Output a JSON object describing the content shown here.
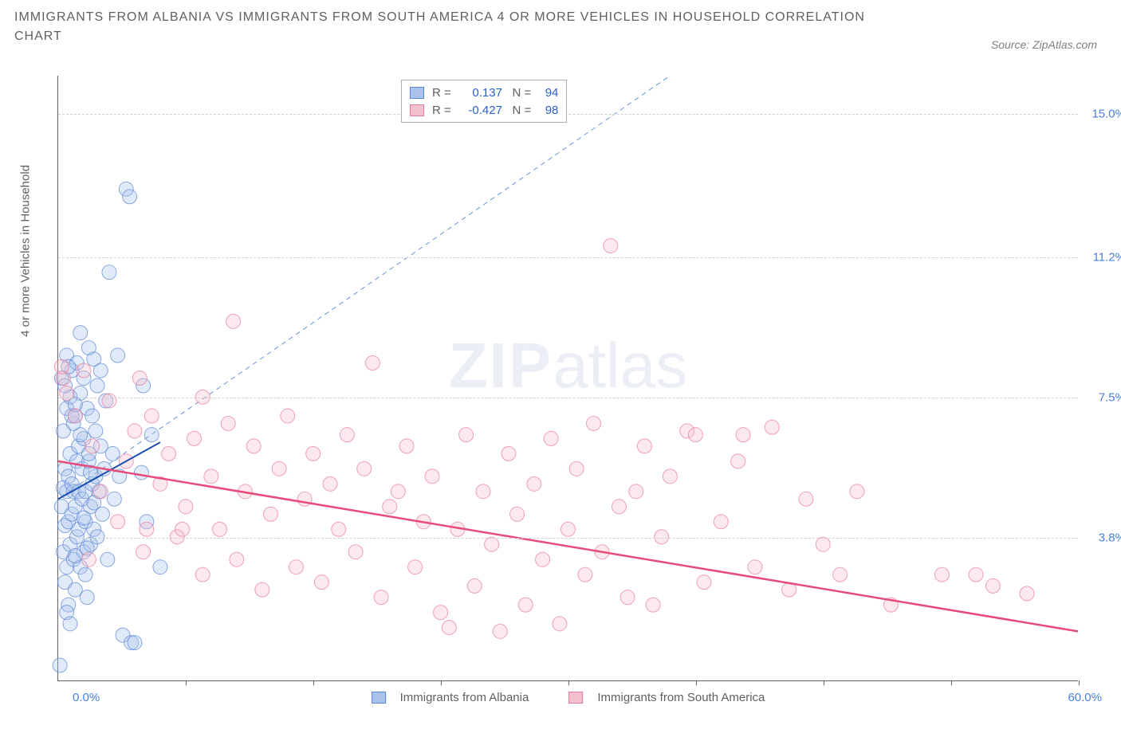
{
  "title": "IMMIGRANTS FROM ALBANIA VS IMMIGRANTS FROM SOUTH AMERICA 4 OR MORE VEHICLES IN HOUSEHOLD CORRELATION CHART",
  "source": "Source: ZipAtlas.com",
  "watermark": {
    "bold": "ZIP",
    "light": "atlas"
  },
  "chart": {
    "type": "scatter",
    "y_axis_title": "4 or more Vehicles in Household",
    "xlim": [
      0,
      60
    ],
    "ylim": [
      0,
      16
    ],
    "x_min_label": "0.0%",
    "x_max_label": "60.0%",
    "y_ticks": [
      3.8,
      7.5,
      11.2,
      15.0
    ],
    "y_tick_labels": [
      "3.8%",
      "7.5%",
      "11.2%",
      "15.0%"
    ],
    "x_tick_positions": [
      7.5,
      15,
      22.5,
      30,
      37.5,
      45,
      52.5,
      60
    ],
    "background_color": "#ffffff",
    "grid_color": "#d0d0d0",
    "axis_color": "#606060",
    "marker_radius": 9,
    "marker_opacity": 0.35,
    "diagonal_line": {
      "color": "#6a93d8",
      "dash": "6,5",
      "width": 1
    },
    "series": [
      {
        "name": "Immigrants from Albania",
        "color_fill": "#a9c3ec",
        "color_stroke": "#5b86d4",
        "R": "0.137",
        "N": "94",
        "trend": {
          "x1": 0,
          "y1": 4.8,
          "x2": 6,
          "y2": 6.3,
          "color": "#1a4fb0",
          "width": 2
        },
        "points": [
          [
            0.1,
            0.4
          ],
          [
            0.2,
            4.6
          ],
          [
            0.3,
            5.1
          ],
          [
            0.3,
            3.4
          ],
          [
            0.3,
            6.6
          ],
          [
            0.4,
            2.6
          ],
          [
            0.4,
            4.1
          ],
          [
            0.4,
            5.6
          ],
          [
            0.5,
            7.2
          ],
          [
            0.5,
            3.0
          ],
          [
            0.5,
            5.0
          ],
          [
            0.5,
            8.6
          ],
          [
            0.6,
            4.2
          ],
          [
            0.6,
            5.4
          ],
          [
            0.6,
            2.0
          ],
          [
            0.7,
            6.0
          ],
          [
            0.7,
            3.6
          ],
          [
            0.7,
            7.5
          ],
          [
            0.8,
            5.2
          ],
          [
            0.8,
            4.4
          ],
          [
            0.8,
            8.2
          ],
          [
            0.9,
            3.2
          ],
          [
            0.9,
            6.8
          ],
          [
            0.9,
            5.0
          ],
          [
            1.0,
            4.6
          ],
          [
            1.0,
            7.0
          ],
          [
            1.0,
            2.4
          ],
          [
            1.1,
            5.8
          ],
          [
            1.1,
            8.4
          ],
          [
            1.1,
            3.8
          ],
          [
            1.2,
            4.0
          ],
          [
            1.2,
            6.2
          ],
          [
            1.2,
            5.0
          ],
          [
            1.3,
            9.2
          ],
          [
            1.3,
            3.0
          ],
          [
            1.3,
            7.6
          ],
          [
            1.4,
            4.8
          ],
          [
            1.4,
            5.6
          ],
          [
            1.5,
            6.4
          ],
          [
            1.5,
            3.4
          ],
          [
            1.5,
            8.0
          ],
          [
            1.6,
            5.0
          ],
          [
            1.6,
            4.2
          ],
          [
            1.7,
            7.2
          ],
          [
            1.7,
            2.2
          ],
          [
            1.8,
            5.8
          ],
          [
            1.8,
            8.8
          ],
          [
            1.8,
            6.0
          ],
          [
            1.9,
            4.6
          ],
          [
            1.9,
            3.6
          ],
          [
            2.0,
            7.0
          ],
          [
            2.0,
            5.2
          ],
          [
            2.1,
            8.5
          ],
          [
            2.1,
            4.0
          ],
          [
            2.2,
            6.6
          ],
          [
            2.2,
            5.4
          ],
          [
            2.3,
            3.8
          ],
          [
            2.3,
            7.8
          ],
          [
            2.4,
            5.0
          ],
          [
            2.5,
            8.2
          ],
          [
            2.5,
            6.2
          ],
          [
            2.6,
            4.4
          ],
          [
            2.7,
            5.6
          ],
          [
            2.8,
            7.4
          ],
          [
            2.9,
            3.2
          ],
          [
            3.0,
            10.8
          ],
          [
            3.2,
            6.0
          ],
          [
            3.3,
            4.8
          ],
          [
            3.5,
            8.6
          ],
          [
            3.6,
            5.4
          ],
          [
            3.8,
            1.2
          ],
          [
            4.0,
            13.0
          ],
          [
            4.2,
            12.8
          ],
          [
            4.3,
            1.0
          ],
          [
            4.5,
            1.0
          ],
          [
            4.9,
            5.5
          ],
          [
            5.0,
            7.8
          ],
          [
            5.2,
            4.2
          ],
          [
            5.5,
            6.5
          ],
          [
            6.0,
            3.0
          ],
          [
            0.2,
            8.0
          ],
          [
            0.4,
            7.8
          ],
          [
            0.6,
            8.3
          ],
          [
            0.8,
            7.0
          ],
          [
            1.0,
            7.3
          ],
          [
            1.3,
            6.5
          ],
          [
            1.5,
            4.3
          ],
          [
            1.7,
            3.5
          ],
          [
            1.9,
            5.5
          ],
          [
            2.1,
            4.7
          ],
          [
            1.0,
            3.3
          ],
          [
            0.5,
            1.8
          ],
          [
            0.7,
            1.5
          ],
          [
            1.6,
            2.8
          ]
        ]
      },
      {
        "name": "Immigrants from South America",
        "color_fill": "#f3c0cd",
        "color_stroke": "#e87b9a",
        "R": "-0.427",
        "N": "98",
        "trend": {
          "x1": 0,
          "y1": 5.8,
          "x2": 60,
          "y2": 1.3,
          "color": "#e84a7a",
          "width": 2.5
        },
        "points": [
          [
            0.3,
            8.0
          ],
          [
            0.5,
            7.6
          ],
          [
            1.0,
            7.0
          ],
          [
            1.5,
            8.2
          ],
          [
            2.0,
            6.2
          ],
          [
            2.5,
            5.0
          ],
          [
            3.0,
            7.4
          ],
          [
            3.5,
            4.2
          ],
          [
            4.0,
            5.8
          ],
          [
            4.5,
            6.6
          ],
          [
            5.0,
            3.4
          ],
          [
            5.2,
            4.0
          ],
          [
            5.5,
            7.0
          ],
          [
            6.0,
            5.2
          ],
          [
            6.5,
            6.0
          ],
          [
            7.0,
            3.8
          ],
          [
            7.3,
            4.0
          ],
          [
            7.5,
            4.6
          ],
          [
            8.0,
            6.4
          ],
          [
            8.5,
            2.8
          ],
          [
            9.0,
            5.4
          ],
          [
            9.5,
            4.0
          ],
          [
            10.0,
            6.8
          ],
          [
            10.3,
            9.5
          ],
          [
            10.5,
            3.2
          ],
          [
            11.0,
            5.0
          ],
          [
            11.5,
            6.2
          ],
          [
            12.0,
            2.4
          ],
          [
            12.5,
            4.4
          ],
          [
            13.0,
            5.6
          ],
          [
            13.5,
            7.0
          ],
          [
            14.0,
            3.0
          ],
          [
            14.5,
            4.8
          ],
          [
            15.0,
            6.0
          ],
          [
            15.5,
            2.6
          ],
          [
            16.0,
            5.2
          ],
          [
            16.5,
            4.0
          ],
          [
            17.0,
            6.5
          ],
          [
            17.5,
            3.4
          ],
          [
            18.0,
            5.6
          ],
          [
            18.5,
            8.4
          ],
          [
            19.0,
            2.2
          ],
          [
            19.5,
            4.6
          ],
          [
            20.0,
            5.0
          ],
          [
            20.5,
            6.2
          ],
          [
            21.0,
            3.0
          ],
          [
            21.5,
            4.2
          ],
          [
            22.0,
            5.4
          ],
          [
            22.5,
            1.8
          ],
          [
            23.0,
            1.4
          ],
          [
            23.5,
            4.0
          ],
          [
            24.0,
            6.5
          ],
          [
            24.5,
            2.5
          ],
          [
            25.0,
            5.0
          ],
          [
            25.5,
            3.6
          ],
          [
            26.0,
            1.3
          ],
          [
            26.5,
            6.0
          ],
          [
            27.0,
            4.4
          ],
          [
            27.5,
            2.0
          ],
          [
            28.0,
            5.2
          ],
          [
            28.5,
            3.2
          ],
          [
            29.0,
            6.4
          ],
          [
            29.5,
            1.5
          ],
          [
            30.0,
            4.0
          ],
          [
            30.5,
            5.6
          ],
          [
            31.0,
            2.8
          ],
          [
            31.5,
            6.8
          ],
          [
            32.0,
            3.4
          ],
          [
            32.5,
            11.5
          ],
          [
            33.0,
            4.6
          ],
          [
            33.5,
            2.2
          ],
          [
            34.0,
            5.0
          ],
          [
            34.5,
            6.2
          ],
          [
            35.0,
            2.0
          ],
          [
            35.5,
            3.8
          ],
          [
            36.0,
            5.4
          ],
          [
            37.0,
            6.6
          ],
          [
            37.5,
            6.5
          ],
          [
            38.0,
            2.6
          ],
          [
            39.0,
            4.2
          ],
          [
            40.0,
            5.8
          ],
          [
            40.3,
            6.5
          ],
          [
            41.0,
            3.0
          ],
          [
            42.0,
            6.7
          ],
          [
            43.0,
            2.4
          ],
          [
            44.0,
            4.8
          ],
          [
            45.0,
            3.6
          ],
          [
            46.0,
            2.8
          ],
          [
            47.0,
            5.0
          ],
          [
            49.0,
            2.0
          ],
          [
            52.0,
            2.8
          ],
          [
            54.0,
            2.8
          ],
          [
            55.0,
            2.5
          ],
          [
            57.0,
            2.3
          ],
          [
            0.2,
            8.3
          ],
          [
            1.8,
            3.2
          ],
          [
            4.8,
            8.0
          ],
          [
            8.5,
            7.5
          ]
        ]
      }
    ]
  },
  "bottom_legend": [
    "Immigrants from Albania",
    "Immigrants from South America"
  ]
}
